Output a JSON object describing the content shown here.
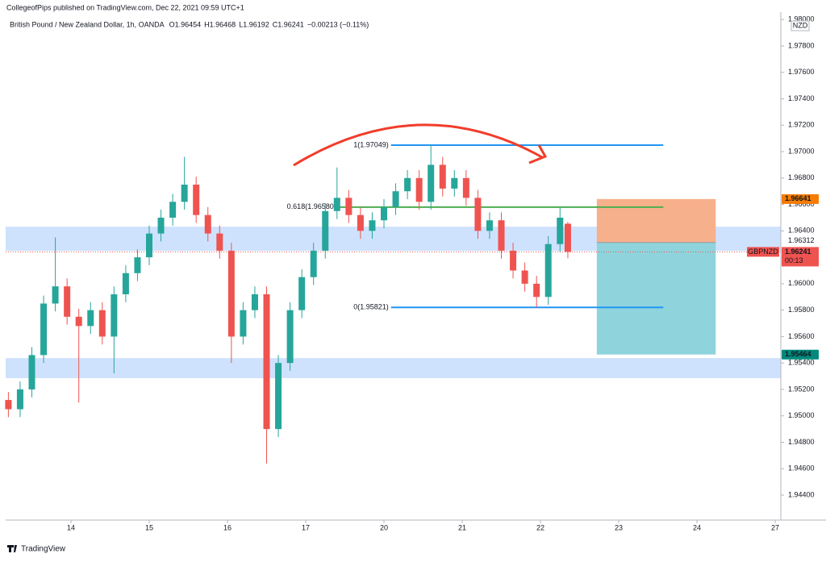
{
  "header": {
    "publisher": "CollegeofPips published on TradingView.com, Dec 22, 2021 09:59 UTC+1",
    "symbol": "British Pound / New Zealand Dollar, 1h, OANDA",
    "ohlc": [
      {
        "label": "O",
        "value": 1.96454
      },
      {
        "label": "H",
        "value": 1.96468
      },
      {
        "label": "L",
        "value": 1.96192
      },
      {
        "label": "C",
        "value": 1.96241
      }
    ],
    "change": "−0.00213 (−0.11%)"
  },
  "footer": {
    "brand": "TradingView"
  },
  "chart_data": {
    "type": "candlestick",
    "currency": "NZD",
    "x": [
      -0.8,
      -0.65,
      -0.5,
      -0.35,
      -0.2,
      -0.05,
      0.1,
      0.25,
      0.4,
      0.55,
      0.7,
      0.85,
      1.0,
      1.15,
      1.3,
      1.45,
      1.6,
      1.75,
      1.9,
      2.05,
      2.2,
      2.35,
      2.5,
      2.65,
      2.8,
      2.95,
      3.1,
      3.25,
      3.4,
      3.55,
      3.7,
      3.85,
      4.0,
      4.15,
      4.3,
      4.45,
      4.6,
      4.75,
      4.9,
      5.05,
      5.2,
      5.35,
      5.5,
      5.65,
      5.8,
      5.95,
      6.1,
      6.25,
      6.35
    ],
    "open": [
      1.9512,
      1.9505,
      1.952,
      1.9546,
      1.9585,
      1.9598,
      1.9575,
      1.9568,
      1.958,
      1.956,
      1.9592,
      1.9608,
      1.962,
      1.9638,
      1.965,
      1.9662,
      1.9675,
      1.9652,
      1.9638,
      1.9625,
      1.956,
      1.958,
      1.9592,
      1.949,
      1.954,
      1.958,
      1.9605,
      1.9625,
      1.9655,
      1.9665,
      1.9652,
      1.964,
      1.9648,
      1.9658,
      1.967,
      1.968,
      1.9662,
      1.969,
      1.9672,
      1.968,
      1.9665,
      1.964,
      1.9648,
      1.9625,
      1.961,
      1.96,
      1.959,
      1.963,
      1.96454
    ],
    "high": [
      1.9518,
      1.9526,
      1.9552,
      1.9591,
      1.9635,
      1.9604,
      1.9581,
      1.9586,
      1.9586,
      1.9598,
      1.9614,
      1.9626,
      1.9644,
      1.9656,
      1.9668,
      1.9696,
      1.9681,
      1.9658,
      1.9644,
      1.9631,
      1.9586,
      1.9598,
      1.9598,
      1.9546,
      1.9586,
      1.9611,
      1.9631,
      1.9661,
      1.9688,
      1.9671,
      1.9658,
      1.9654,
      1.9664,
      1.9676,
      1.9686,
      1.9686,
      1.9705,
      1.9696,
      1.9686,
      1.9686,
      1.9671,
      1.9654,
      1.9654,
      1.9631,
      1.9616,
      1.9606,
      1.9636,
      1.9658,
      1.96468
    ],
    "low": [
      1.9499,
      1.9499,
      1.9514,
      1.954,
      1.9579,
      1.9569,
      1.951,
      1.9562,
      1.9554,
      1.9532,
      1.9586,
      1.9602,
      1.9614,
      1.9632,
      1.9644,
      1.9656,
      1.9646,
      1.9632,
      1.9619,
      1.954,
      1.9554,
      1.9574,
      1.9464,
      1.9484,
      1.9534,
      1.9574,
      1.9599,
      1.9619,
      1.9649,
      1.9646,
      1.9634,
      1.9634,
      1.9642,
      1.9652,
      1.9664,
      1.9656,
      1.9656,
      1.9666,
      1.9666,
      1.9659,
      1.9634,
      1.9634,
      1.9619,
      1.9604,
      1.9594,
      1.9582,
      1.9584,
      1.9624,
      1.96192
    ],
    "close": [
      1.9505,
      1.952,
      1.9546,
      1.9585,
      1.9598,
      1.9575,
      1.9568,
      1.958,
      1.956,
      1.9592,
      1.9608,
      1.962,
      1.9638,
      1.965,
      1.9662,
      1.9675,
      1.9652,
      1.9638,
      1.9625,
      1.956,
      1.958,
      1.9592,
      1.949,
      1.954,
      1.958,
      1.9605,
      1.9625,
      1.9655,
      1.9665,
      1.9652,
      1.964,
      1.9648,
      1.9658,
      1.967,
      1.968,
      1.9662,
      1.969,
      1.9672,
      1.968,
      1.9665,
      1.964,
      1.9648,
      1.9625,
      1.961,
      1.96,
      1.959,
      1.963,
      1.965,
      1.96241
    ],
    "up_color": "#26a69a",
    "down_color": "#ef5350",
    "xlim": [
      -0.835,
      9.072
    ],
    "xticks": [
      {
        "value": 0,
        "label": "14"
      },
      {
        "value": 1,
        "label": "15"
      },
      {
        "value": 2,
        "label": "16"
      },
      {
        "value": 3,
        "label": "17"
      },
      {
        "value": 4,
        "label": "20"
      },
      {
        "value": 5,
        "label": "21"
      },
      {
        "value": 6,
        "label": "22"
      },
      {
        "value": 7,
        "label": "23"
      },
      {
        "value": 8,
        "label": "24"
      },
      {
        "value": 9,
        "label": "27"
      }
    ],
    "ylim": [
      1.94211,
      1.98056
    ],
    "yticks": [
      {
        "value": 1.944,
        "label": "1.94400"
      },
      {
        "value": 1.946,
        "label": "1.94600"
      },
      {
        "value": 1.948,
        "label": "1.94800"
      },
      {
        "value": 1.95,
        "label": "1.95000"
      },
      {
        "value": 1.952,
        "label": "1.95200"
      },
      {
        "value": 1.954,
        "label": "1.95400"
      },
      {
        "value": 1.956,
        "label": "1.95600"
      },
      {
        "value": 1.958,
        "label": "1.95800"
      },
      {
        "value": 1.96,
        "label": "1.96000"
      },
      {
        "value": 1.962,
        "label": "1.96200"
      },
      {
        "value": 1.964,
        "label": "1.96400"
      },
      {
        "value": 1.966,
        "label": "1.96600"
      },
      {
        "value": 1.968,
        "label": "1.96800"
      },
      {
        "value": 1.97,
        "label": "1.97000"
      },
      {
        "value": 1.972,
        "label": "1.97200"
      },
      {
        "value": 1.974,
        "label": "1.97400"
      },
      {
        "value": 1.976,
        "label": "1.97600"
      },
      {
        "value": 1.978,
        "label": "1.97800"
      },
      {
        "value": 1.98,
        "label": "1.98000"
      }
    ],
    "zones": [
      {
        "low": 1.96249,
        "high": 1.96432,
        "color": "#cfe2fd"
      },
      {
        "low": 1.95285,
        "high": 1.95437,
        "color": "#cfe2fd"
      }
    ],
    "fib_levels": [
      {
        "label": "1(1.97049)",
        "value": 1.97049,
        "color": "#2196f3",
        "x": [
          4.09,
          7.57
        ]
      },
      {
        "label": "0.618(1.96580)",
        "value": 1.9658,
        "color": "#4caf50",
        "x": [
          3.42,
          7.57
        ]
      },
      {
        "label": "0(1.95821)",
        "value": 1.95821,
        "color": "#2196f3",
        "x": [
          4.09,
          7.57
        ]
      }
    ],
    "position": {
      "entry": 1.96312,
      "stop": 1.96641,
      "target": 1.95464,
      "x": [
        6.72,
        8.24
      ],
      "stop_color": "#f7b08c",
      "target_color": "#8fd4dc"
    },
    "last_price": {
      "symbol": "GBPNZD",
      "value": 1.96241,
      "countdown": "00:13",
      "color": "#ef5350"
    }
  }
}
